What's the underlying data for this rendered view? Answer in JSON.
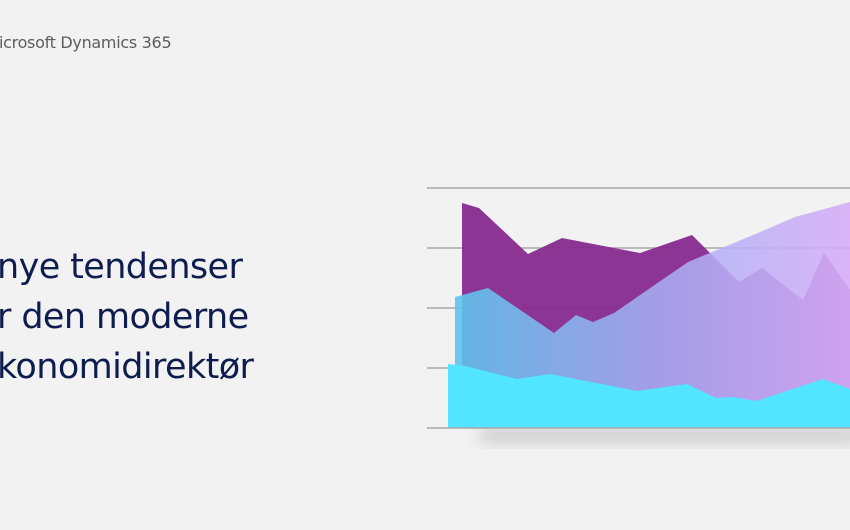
{
  "header": {
    "brand": "icrosoft Dynamics 365"
  },
  "cover": {
    "title_lines": [
      "nye tendenser",
      "r den moderne",
      "konomidirektør"
    ]
  },
  "illustration": {
    "type": "decorative-area-chart",
    "colors": {
      "purple": "#862a8f",
      "gradient_start": "#5cc4ec",
      "gradient_end": "#d6aef8",
      "cyan": "#52e5ff",
      "gridline": "#a8a8a8",
      "title": "#0e1d4e"
    }
  }
}
